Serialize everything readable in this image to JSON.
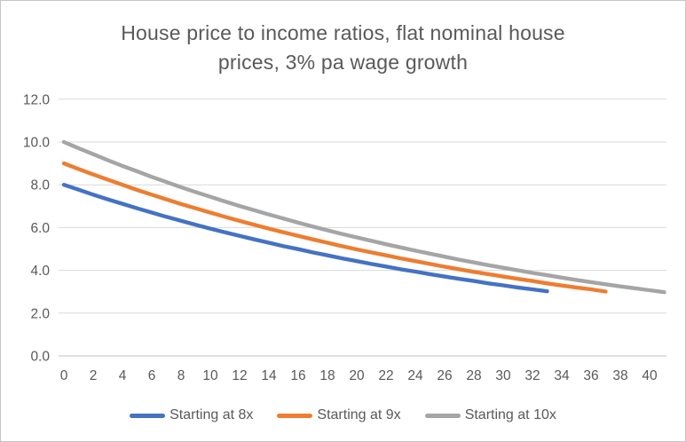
{
  "title": {
    "line1": "House price to income ratios, flat nominal house",
    "line2": "prices, 3% pa wage growth"
  },
  "colors": {
    "title_text": "#595959",
    "tick_text": "#595959",
    "legend_text": "#595959",
    "gridline": "#d9d9d9",
    "axis_line": "#bfbfbf",
    "frame_border": "#c6c6c6",
    "background": "#ffffff",
    "series_blue": "#4472C4",
    "series_orange": "#ED7D31",
    "series_gray": "#A5A5A5"
  },
  "chart_data": {
    "type": "line",
    "title": "House price to income ratios, flat nominal house prices, 3% pa wage growth",
    "xlabel": "",
    "ylabel": "",
    "xlim": [
      0,
      41
    ],
    "ylim": [
      0,
      12
    ],
    "x_ticks": [
      0,
      2,
      4,
      6,
      8,
      10,
      12,
      14,
      16,
      18,
      20,
      22,
      24,
      26,
      28,
      30,
      32,
      34,
      36,
      38,
      40
    ],
    "y_ticks": [
      0,
      2,
      4,
      6,
      8,
      10,
      12
    ],
    "y_tick_labels": [
      "0.0",
      "2.0",
      "4.0",
      "6.0",
      "8.0",
      "10.0",
      "12.0"
    ],
    "grid": "horizontal",
    "legend_position": "bottom",
    "series": [
      {
        "name": "Starting at 8x",
        "color": "#4472C4",
        "x_start": 0,
        "x_step": 1,
        "values": [
          8.0,
          7.77,
          7.54,
          7.32,
          7.11,
          6.9,
          6.7,
          6.5,
          6.32,
          6.13,
          5.95,
          5.78,
          5.61,
          5.45,
          5.29,
          5.13,
          4.99,
          4.84,
          4.7,
          4.56,
          4.43,
          4.3,
          4.18,
          4.05,
          3.94,
          3.82,
          3.71,
          3.6,
          3.5,
          3.39,
          3.3,
          3.2,
          3.11,
          3.02
        ]
      },
      {
        "name": "Starting at 9x",
        "color": "#ED7D31",
        "x_start": 0,
        "x_step": 1,
        "values": [
          9.0,
          8.74,
          8.48,
          8.24,
          8.0,
          7.76,
          7.54,
          7.32,
          7.1,
          6.9,
          6.7,
          6.5,
          6.31,
          6.13,
          5.95,
          5.78,
          5.61,
          5.45,
          5.29,
          5.13,
          4.98,
          4.84,
          4.7,
          4.56,
          4.43,
          4.3,
          4.17,
          4.05,
          3.93,
          3.82,
          3.71,
          3.6,
          3.5,
          3.39,
          3.29,
          3.2,
          3.11,
          3.01
        ]
      },
      {
        "name": "Starting at 10x",
        "color": "#A5A5A5",
        "x_start": 0,
        "x_step": 1,
        "values": [
          10.0,
          9.71,
          9.43,
          9.15,
          8.88,
          8.63,
          8.37,
          8.13,
          7.89,
          7.66,
          7.44,
          7.22,
          7.01,
          6.81,
          6.61,
          6.42,
          6.23,
          6.05,
          5.87,
          5.7,
          5.54,
          5.38,
          5.22,
          5.07,
          4.92,
          4.78,
          4.64,
          4.5,
          4.37,
          4.24,
          4.12,
          4.0,
          3.88,
          3.77,
          3.66,
          3.55,
          3.45,
          3.35,
          3.25,
          3.16,
          3.07,
          2.98
        ]
      }
    ]
  }
}
